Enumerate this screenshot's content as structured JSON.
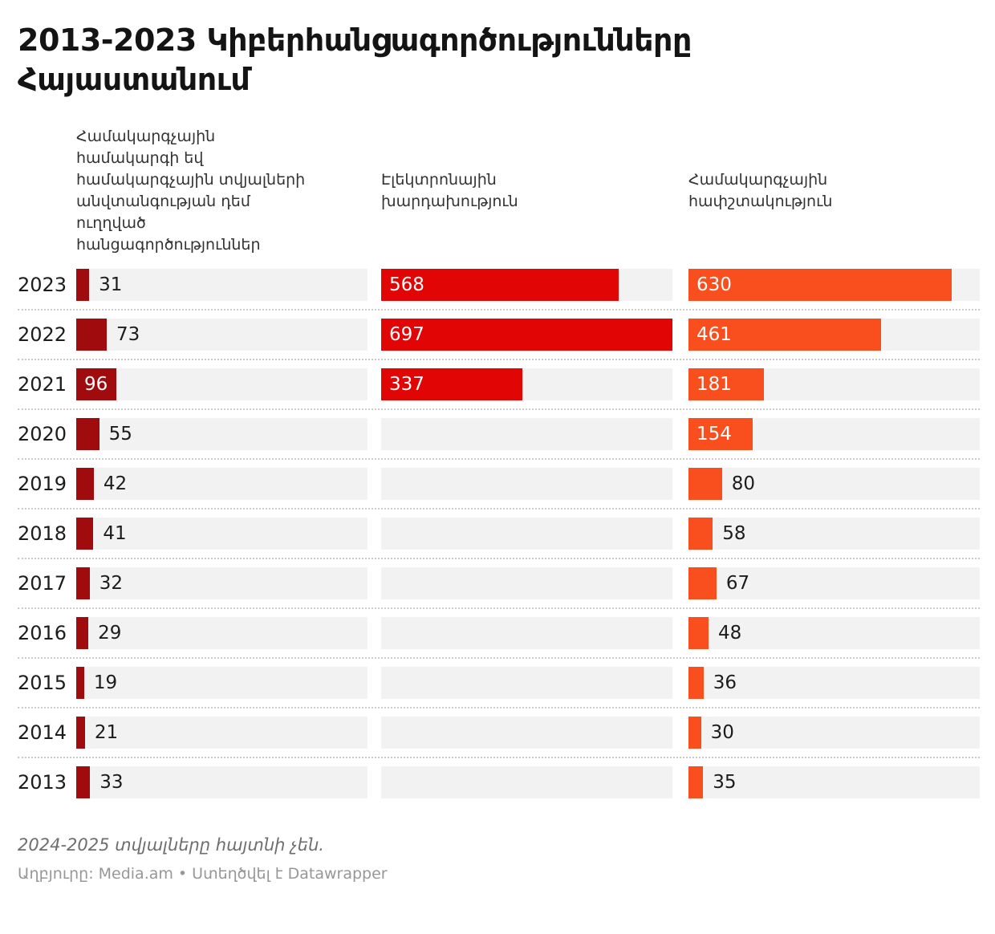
{
  "title": "2013-2023 Կիբերհանցագործությունները Հայաստանում",
  "columns": {
    "col1": "Համակարգչային\nհամակարգի եվ\nհամակարգչային տվյալների\nանվտանգության դեմ\nուղղված\nհանցագործություններ",
    "col2": "Էլեկտրոնային\nխարդախություն",
    "col3": "Համակարգչային\nհափշտակություն"
  },
  "chart_data": {
    "type": "bar",
    "orientation": "horizontal",
    "categories": [
      "2023",
      "2022",
      "2021",
      "2020",
      "2019",
      "2018",
      "2017",
      "2016",
      "2015",
      "2014",
      "2013"
    ],
    "series": [
      {
        "name": "Համակարգչային համակարգի եվ համակարգչային տվյալների անվտանգության դեմ ուղղված հանցագործություններ",
        "color": "#a00b0e",
        "values": [
          31,
          73,
          96,
          55,
          42,
          41,
          32,
          29,
          19,
          21,
          33
        ]
      },
      {
        "name": "Էլեկտրոնային խարդախություն",
        "color": "#e20505",
        "values": [
          568,
          697,
          337,
          null,
          null,
          null,
          null,
          null,
          null,
          null,
          null
        ]
      },
      {
        "name": "Համակարգչային հափշտակություն",
        "color": "#f94e1d",
        "values": [
          630,
          461,
          181,
          154,
          80,
          58,
          67,
          48,
          36,
          30,
          35
        ]
      }
    ],
    "xmax": 697,
    "track_color": "#f2f2f2",
    "label_color_inside": "#ffffff",
    "label_color_outside": "#1c1c1c",
    "grid": false,
    "legend_position": "column-headers"
  },
  "footer": {
    "note": "2024-2025 տվյալները հայտնի չեն.",
    "source": "Աղբյուրը: Media.am • Ստեղծվել է Datawrapper"
  }
}
